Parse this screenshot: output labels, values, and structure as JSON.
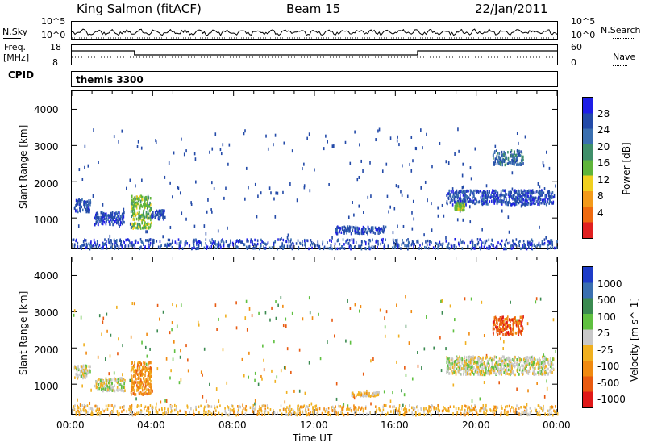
{
  "header": {
    "station": "King Salmon (fitACF)",
    "beam": "Beam 15",
    "date": "22/Jan/2011"
  },
  "top_panels": {
    "nsky_label": "N.Sky",
    "nsky_ticks": [
      "10^5",
      "10^0"
    ],
    "nsearch_label": "N.Search",
    "nsearch_ticks": [
      "10^5",
      "10^0"
    ],
    "freq_label": "Freq.",
    "freq_unit": "[MHz]",
    "freq_ticks": [
      "18",
      "8"
    ],
    "nave_label": "Nave",
    "nave_ticks": [
      "60",
      "0"
    ],
    "cpid_label": "CPID",
    "cpid_value": "themis 3300"
  },
  "x_axis": {
    "label": "Time UT",
    "ticks": [
      "00:00",
      "04:00",
      "08:00",
      "12:00",
      "16:00",
      "20:00",
      "00:00"
    ]
  },
  "colors": {
    "power_scale": [
      "#1e1ee6",
      "#234aa8",
      "#3a6fb0",
      "#3f8f6a",
      "#5fb53a",
      "#f0d020",
      "#f39a1a",
      "#ee6a10",
      "#e02020"
    ],
    "velocity_scale": [
      "#1e3cc8",
      "#3a6fb0",
      "#3a8a50",
      "#5fc040",
      "#c8c8c8",
      "#f0b020",
      "#f08a10",
      "#e85a10",
      "#e01818"
    ]
  },
  "chart_data": [
    {
      "type": "heatmap",
      "title": "",
      "xlabel": "",
      "ylabel": "Slant Range [km]",
      "xlim": [
        0,
        24
      ],
      "ylim": [
        180,
        4500
      ],
      "y_ticks": [
        "4000",
        "3000",
        "2000",
        "1000"
      ],
      "colorbar": {
        "label": "Power [dB]",
        "ticks": [
          "28",
          "24",
          "20",
          "16",
          "12",
          "8",
          "4"
        ]
      },
      "clusters": [
        {
          "x0": 0.1,
          "x1": 0.9,
          "y0": 1200,
          "y1": 1550,
          "level": 1
        },
        {
          "x0": 1.1,
          "x1": 2.6,
          "y0": 850,
          "y1": 1200,
          "level": 1
        },
        {
          "x0": 2.9,
          "x1": 3.9,
          "y0": 750,
          "y1": 1650,
          "level": 4
        },
        {
          "x0": 3.9,
          "x1": 4.6,
          "y0": 1000,
          "y1": 1250,
          "level": 1
        },
        {
          "x0": 18.5,
          "x1": 23.8,
          "y0": 1400,
          "y1": 1800,
          "level": 1
        },
        {
          "x0": 18.9,
          "x1": 19.4,
          "y0": 1250,
          "y1": 1450,
          "level": 4
        },
        {
          "x0": 20.8,
          "x1": 22.3,
          "y0": 2500,
          "y1": 2900,
          "level": 2
        },
        {
          "x0": 13.0,
          "x1": 15.5,
          "y0": 600,
          "y1": 800,
          "level": 1
        },
        {
          "x0": 0.0,
          "x1": 24.0,
          "y0": 180,
          "y1": 450,
          "level": 1
        }
      ]
    },
    {
      "type": "heatmap",
      "title": "",
      "xlabel": "Time UT",
      "ylabel": "Slant Range [km]",
      "xlim": [
        0,
        24
      ],
      "ylim": [
        180,
        4500
      ],
      "y_ticks": [
        "4000",
        "3000",
        "2000",
        "1000"
      ],
      "colorbar": {
        "label": "Velocity [m s^-1]",
        "ticks": [
          "1000",
          "500",
          "100",
          "25",
          "-25",
          "-100",
          "-500",
          "-1000"
        ]
      },
      "clusters": [
        {
          "x0": 0.1,
          "x1": 0.9,
          "y0": 1200,
          "y1": 1550,
          "level": 4
        },
        {
          "x0": 1.1,
          "x1": 2.6,
          "y0": 850,
          "y1": 1200,
          "level": 4
        },
        {
          "x0": 2.9,
          "x1": 3.9,
          "y0": 750,
          "y1": 1650,
          "level": 6
        },
        {
          "x0": 18.5,
          "x1": 23.8,
          "y0": 1300,
          "y1": 1800,
          "level": 4
        },
        {
          "x0": 20.8,
          "x1": 22.3,
          "y0": 2400,
          "y1": 2900,
          "level": 7
        },
        {
          "x0": 13.8,
          "x1": 15.2,
          "y0": 700,
          "y1": 820,
          "level": 5
        },
        {
          "x0": 0.0,
          "x1": 24.0,
          "y0": 180,
          "y1": 450,
          "level": 5
        }
      ]
    }
  ]
}
